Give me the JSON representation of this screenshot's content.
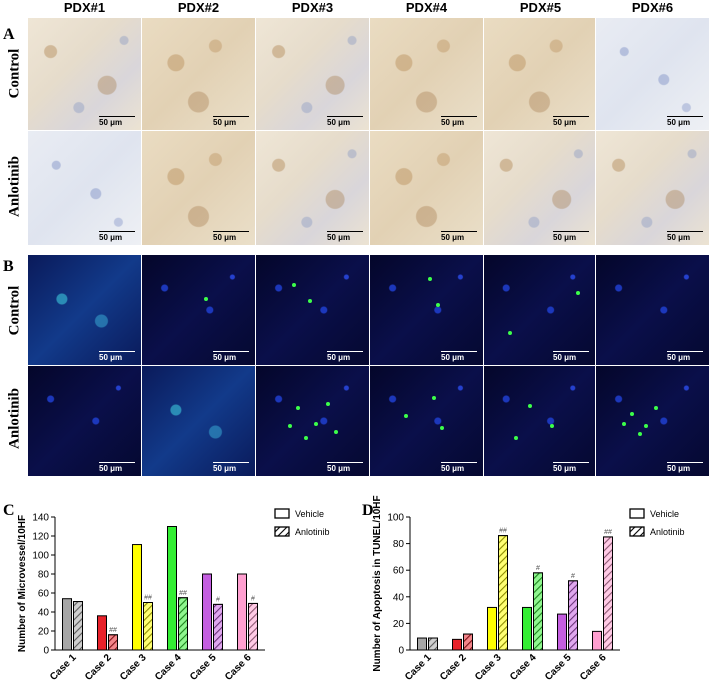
{
  "columns": [
    "PDX#1",
    "PDX#2",
    "PDX#3",
    "PDX#4",
    "PDX#5",
    "PDX#6"
  ],
  "panels": {
    "a": {
      "letter": "A",
      "rows": [
        "Control",
        "Anlotinib"
      ]
    },
    "b": {
      "letter": "B",
      "rows": [
        "Control",
        "Anlotinib"
      ]
    },
    "c": {
      "letter": "C"
    },
    "d": {
      "letter": "D"
    }
  },
  "scale_bar": "50 μm",
  "colors": {
    "vehicle": "#ffffff",
    "anlotinib_hatch": "#000000"
  },
  "chart_data": [
    {
      "panel": "C",
      "type": "bar",
      "categories": [
        "Case 1",
        "Case 2",
        "Case 3",
        "Case 4",
        "Case 5",
        "Case 6"
      ],
      "colors": [
        "#a6a6a6",
        "#e8212a",
        "#ffff00",
        "#33ee33",
        "#c45ee0",
        "#ff9fd0"
      ],
      "series": [
        {
          "name": "Vehicle",
          "values": [
            54,
            36,
            111,
            130,
            80,
            80
          ],
          "pattern": "solid"
        },
        {
          "name": "Anlotinib",
          "values": [
            51,
            16,
            50,
            55,
            48,
            49
          ],
          "pattern": "hatched"
        }
      ],
      "annotations": [
        "",
        "##",
        "##",
        "##",
        "#",
        "#"
      ],
      "ylabel": "Number of Microvessel/10HF",
      "ylim": [
        0,
        140
      ],
      "yticks": [
        0,
        20,
        40,
        60,
        80,
        100,
        120,
        140
      ],
      "legend": "top-right"
    },
    {
      "panel": "D",
      "type": "bar",
      "categories": [
        "Case 1",
        "Case 2",
        "Case 3",
        "Case 4",
        "Case 5",
        "Case 6"
      ],
      "colors": [
        "#a6a6a6",
        "#e8212a",
        "#ffff00",
        "#33ee33",
        "#c45ee0",
        "#ff9fd0"
      ],
      "series": [
        {
          "name": "Vehicle",
          "values": [
            9,
            8,
            32,
            32,
            27,
            14
          ],
          "pattern": "solid"
        },
        {
          "name": "Anlotinib",
          "values": [
            9,
            12,
            86,
            58,
            52,
            85
          ],
          "pattern": "hatched"
        }
      ],
      "annotations": [
        "",
        "",
        "##",
        "#",
        "#",
        "##"
      ],
      "ylabel": "Number of Apoptosis in TUNEL/10HF",
      "ylim": [
        0,
        100
      ],
      "yticks": [
        0,
        20,
        40,
        60,
        80,
        100
      ],
      "legend": "top-right"
    }
  ]
}
